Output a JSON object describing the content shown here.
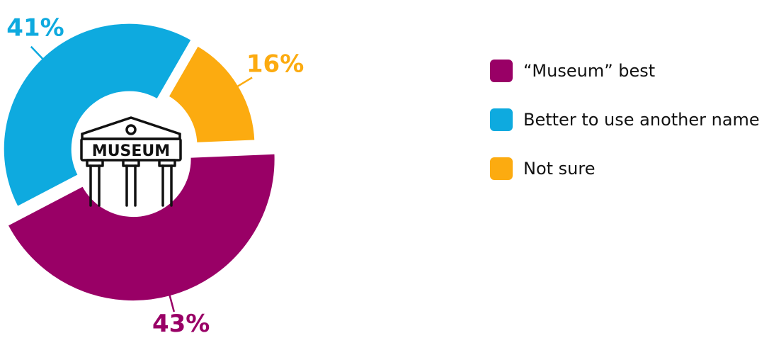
{
  "chart_data": {
    "type": "pie",
    "variant": "exploded-donut",
    "categories": [
      "“Museum” best",
      "Better to use another name",
      "Not sure"
    ],
    "values": [
      43,
      41,
      16
    ],
    "value_labels": [
      "43%",
      "41%",
      "16%"
    ],
    "colors": [
      "#990066",
      "#0eaadf",
      "#fcab10"
    ],
    "center_icon": "museum-building-icon",
    "center_icon_text": "MUSEUM",
    "legend_position": "right"
  },
  "legend": {
    "items": [
      {
        "label": "“Museum” best",
        "color": "#990066"
      },
      {
        "label": "Better to use another name",
        "color": "#0eaadf"
      },
      {
        "label": "Not sure",
        "color": "#fcab10"
      }
    ]
  }
}
